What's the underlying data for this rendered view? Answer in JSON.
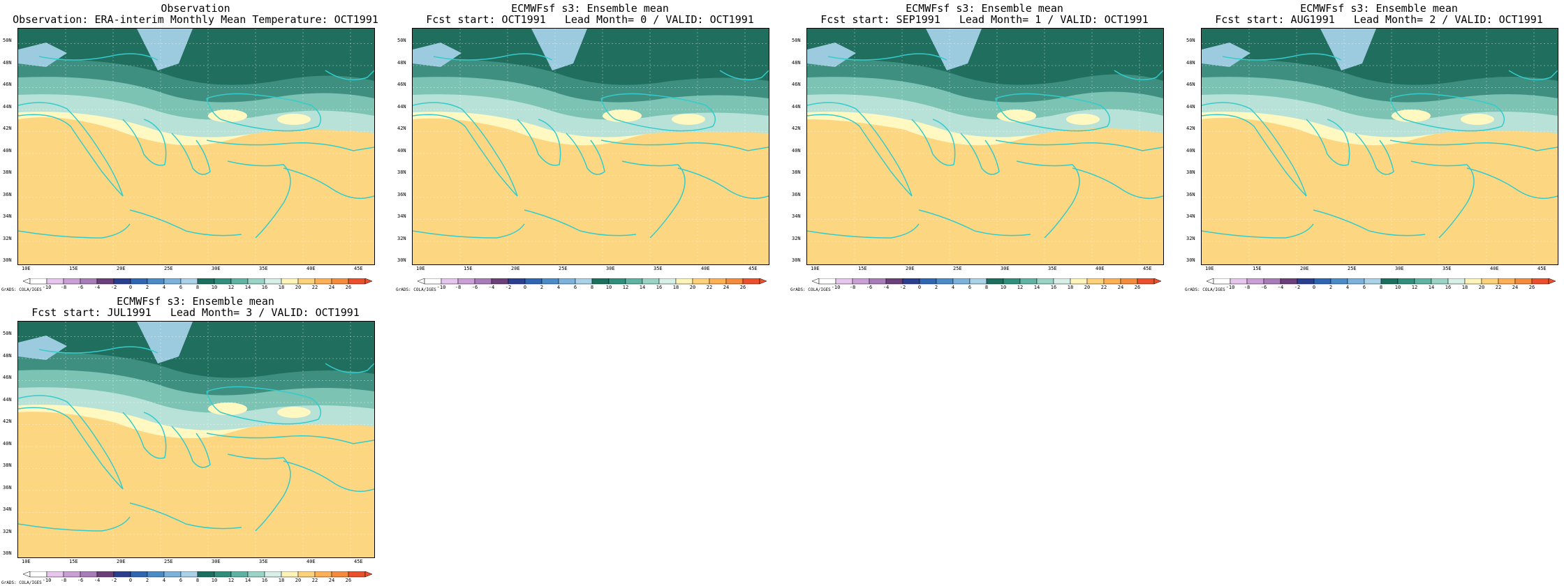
{
  "panels": [
    {
      "title1": "Observation",
      "title2": "Observation: ERA-interim Monthly Mean Temperature: OCT1991",
      "variant": 0
    },
    {
      "title1": "ECMWFsf s3: Ensemble mean",
      "title2": "Fcst start: OCT1991   Lead Month= 0 / VALID: OCT1991",
      "variant": 1
    },
    {
      "title1": "ECMWFsf s3: Ensemble mean",
      "title2": "Fcst start: SEP1991   Lead Month= 1 / VALID: OCT1991",
      "variant": 2
    },
    {
      "title1": "ECMWFsf s3: Ensemble mean",
      "title2": "Fcst start: AUG1991   Lead Month= 2 / VALID: OCT1991",
      "variant": 3
    },
    {
      "title1": "ECMWFsf s3: Ensemble mean",
      "title2": "Fcst start: JUL1991   Lead Month= 3 / VALID: OCT1991",
      "variant": 4
    }
  ],
  "axes": {
    "lat_labels": [
      "50N",
      "48N",
      "46N",
      "44N",
      "42N",
      "40N",
      "38N",
      "36N",
      "34N",
      "32N",
      "30N"
    ],
    "lon_labels": [
      "10E",
      "15E",
      "20E",
      "25E",
      "30E",
      "35E",
      "40E",
      "45E"
    ]
  },
  "colorbar": {
    "levels": [
      "-10",
      "-8",
      "-6",
      "-4",
      "-2",
      "0",
      "2",
      "4",
      "6",
      "8",
      "10",
      "12",
      "14",
      "16",
      "18",
      "20",
      "22",
      "24",
      "26"
    ],
    "colors": [
      "#ffffff",
      "#e7c6ee",
      "#c99fd6",
      "#a77cb8",
      "#6b3f7a",
      "#2a3f8f",
      "#2f66b3",
      "#4a8cc8",
      "#7bb3dc",
      "#a9d2e8",
      "#1b6f5f",
      "#2f8f7c",
      "#5fb3a3",
      "#9ad4c6",
      "#d7efe6",
      "#fff4b8",
      "#ffd27a",
      "#ffb055",
      "#f58c3c",
      "#e9502b"
    ],
    "credit": "GrADS: COLA/IGES"
  },
  "palette": {
    "dark_green": "#1f6e5e",
    "mid_green": "#3f8f80",
    "light_green": "#7cc3b3",
    "pale_green": "#b8e2d8",
    "pale_blue": "#9ccbe0",
    "cream": "#fff8c0",
    "yellow": "#fcd680",
    "orange_light": "#f9b75f",
    "orange": "#f49a45",
    "orange_dark": "#ee7b37",
    "red": "#e2502d",
    "coast": "#33cccc"
  }
}
